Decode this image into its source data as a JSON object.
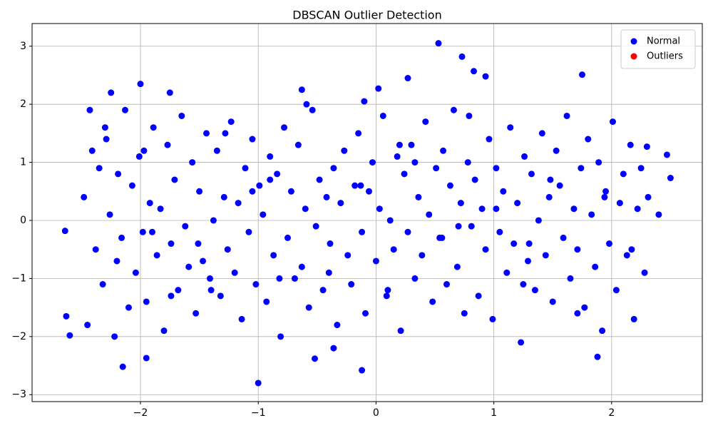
{
  "chart_data": {
    "type": "scatter",
    "title": "DBSCAN Outlier Detection",
    "xlim": [
      -2.92,
      2.77
    ],
    "ylim": [
      -3.12,
      3.39
    ],
    "xticks": [
      {
        "value": -2,
        "label": "−2"
      },
      {
        "value": -1,
        "label": "−1"
      },
      0,
      1,
      2
    ],
    "yticks": [
      {
        "value": -3,
        "label": "−3"
      },
      {
        "value": -2,
        "label": "−2"
      },
      {
        "value": -1,
        "label": "−1"
      },
      0,
      1,
      2,
      3
    ],
    "grid": true,
    "legend": "upper right",
    "series": [
      {
        "name": "Normal",
        "color": "#0000ff",
        "x": [
          -2.48,
          -2.45,
          -2.41,
          -2.38,
          -2.35,
          -2.32,
          -2.29,
          -2.26,
          -2.22,
          -2.19,
          -2.16,
          -2.13,
          -2.1,
          -2.07,
          -2.04,
          -2.01,
          -1.98,
          -1.95,
          -1.92,
          -1.89,
          -1.86,
          -1.83,
          -1.8,
          -1.77,
          -1.74,
          -1.71,
          -1.68,
          -1.65,
          -1.62,
          -1.59,
          -1.56,
          -1.53,
          -1.5,
          -1.47,
          -1.44,
          -1.41,
          -1.38,
          -1.35,
          -1.32,
          -1.29,
          -1.26,
          -1.23,
          -1.2,
          -1.17,
          -1.14,
          -1.11,
          -1.08,
          -1.05,
          -1.02,
          -0.99,
          -0.96,
          -0.93,
          -0.9,
          -0.87,
          -0.84,
          -0.81,
          -0.78,
          -0.75,
          -0.72,
          -0.69,
          -0.66,
          -0.63,
          -0.6,
          -0.57,
          -0.54,
          -0.51,
          -0.48,
          -0.45,
          -0.42,
          -0.39,
          -0.36,
          -0.33,
          -0.3,
          -0.27,
          -0.24,
          -0.21,
          -0.18,
          -0.15,
          -0.12,
          -0.09,
          -0.06,
          -0.03,
          0.0,
          0.03,
          0.06,
          0.09,
          0.12,
          0.15,
          0.18,
          0.21,
          0.24,
          0.27,
          0.3,
          0.33,
          0.36,
          0.39,
          0.42,
          0.45,
          0.48,
          0.51,
          0.54,
          0.57,
          0.6,
          0.63,
          0.66,
          0.69,
          0.72,
          0.75,
          0.78,
          0.81,
          0.84,
          0.87,
          0.9,
          0.93,
          0.96,
          0.99,
          1.02,
          1.05,
          1.08,
          1.11,
          1.14,
          1.17,
          1.2,
          1.23,
          1.26,
          1.29,
          1.32,
          1.35,
          1.38,
          1.41,
          1.44,
          1.47,
          1.5,
          1.53,
          1.56,
          1.59,
          1.62,
          1.65,
          1.68,
          1.71,
          1.74,
          1.77,
          1.8,
          1.83,
          1.86,
          1.89,
          1.92,
          1.95,
          1.98,
          2.01,
          2.04,
          2.07,
          2.1,
          2.13,
          2.16,
          2.19,
          2.22,
          2.25,
          2.28,
          2.31,
          -2.43,
          -2.2,
          -1.97,
          -1.74,
          -1.51,
          -1.28,
          -1.05,
          -0.82,
          -0.59,
          -0.36,
          -0.13,
          0.1,
          0.33,
          0.56,
          0.79,
          1.02,
          1.25,
          1.48,
          1.71,
          1.94,
          2.17,
          2.4,
          -2.3,
          -1.9,
          -1.4,
          -0.9,
          -0.4,
          0.2,
          0.7,
          1.3,
          0.53,
          0.73,
          0.83,
          0.93,
          1.75,
          0.27,
          -1.0,
          -0.12,
          -2.15,
          -1.95,
          1.88,
          -0.52,
          -2.64,
          2.5,
          -2.63,
          -2.6,
          -2.0,
          -1.75,
          -2.25,
          -0.63,
          -0.1,
          0.02,
          2.47,
          2.3
        ],
        "values": [
          0.4,
          -1.8,
          1.2,
          -0.5,
          0.9,
          -1.1,
          1.4,
          0.1,
          -2.0,
          0.8,
          -0.3,
          1.9,
          -1.5,
          0.6,
          -0.9,
          1.1,
          -0.2,
          -1.4,
          0.3,
          1.6,
          -0.6,
          0.2,
          -1.9,
          1.3,
          -0.4,
          0.7,
          -1.2,
          1.8,
          -0.1,
          -0.8,
          1.0,
          -1.6,
          0.5,
          -0.7,
          1.5,
          -1.0,
          0.0,
          1.2,
          -1.3,
          0.4,
          -0.5,
          1.7,
          -0.9,
          0.3,
          -1.7,
          0.9,
          -0.2,
          1.4,
          -1.1,
          0.6,
          0.1,
          -1.4,
          1.1,
          -0.6,
          0.8,
          -2.0,
          1.6,
          -0.3,
          0.5,
          -1.0,
          1.3,
          -0.8,
          0.2,
          -1.5,
          1.9,
          -0.1,
          0.7,
          -1.2,
          0.4,
          -0.4,
          0.9,
          -1.8,
          0.3,
          1.2,
          -0.6,
          -1.1,
          0.6,
          1.5,
          -0.2,
          -1.6,
          0.5,
          1.0,
          -0.7,
          0.2,
          1.8,
          -1.3,
          0.0,
          -0.5,
          1.1,
          -1.9,
          0.8,
          -0.2,
          1.3,
          -1.0,
          0.4,
          -0.6,
          1.7,
          0.1,
          -1.4,
          0.9,
          -0.3,
          1.2,
          -1.1,
          0.6,
          1.9,
          -0.8,
          0.3,
          -1.6,
          1.0,
          -0.1,
          0.7,
          -1.3,
          0.2,
          -0.5,
          1.4,
          -1.7,
          0.9,
          -0.2,
          0.5,
          -0.9,
          1.6,
          -0.4,
          0.3,
          -2.1,
          1.1,
          -0.7,
          0.8,
          -1.2,
          0.0,
          1.5,
          -0.6,
          0.4,
          -1.4,
          1.2,
          0.6,
          -0.3,
          1.8,
          -1.0,
          0.2,
          -0.5,
          0.9,
          -1.5,
          1.4,
          0.1,
          -0.8,
          1.0,
          -1.9,
          0.5,
          -0.4,
          1.7,
          -1.2,
          0.3,
          0.8,
          -0.6,
          1.3,
          -1.7,
          0.2,
          0.9,
          -0.9,
          0.4,
          1.9,
          -0.7,
          1.2,
          -1.3,
          -0.4,
          1.5,
          0.5,
          -1.0,
          2.0,
          -2.2,
          0.6,
          -1.2,
          1.0,
          -0.3,
          1.8,
          0.2,
          -1.1,
          0.7,
          -1.6,
          0.4,
          -0.5,
          0.1,
          1.6,
          -0.2,
          -1.2,
          0.7,
          -0.9,
          1.3,
          -0.1,
          -0.4,
          3.05,
          2.82,
          2.57,
          2.48,
          2.51,
          2.45,
          -2.8,
          -2.58,
          -2.52,
          -2.37,
          -2.35,
          -2.38,
          -0.18,
          0.73,
          -1.65,
          -1.98,
          2.35,
          2.2,
          2.2,
          2.25,
          2.05,
          2.27,
          1.13,
          1.27
        ]
      },
      {
        "name": "Outliers",
        "color": "#ff0000",
        "x": [],
        "values": []
      }
    ]
  }
}
